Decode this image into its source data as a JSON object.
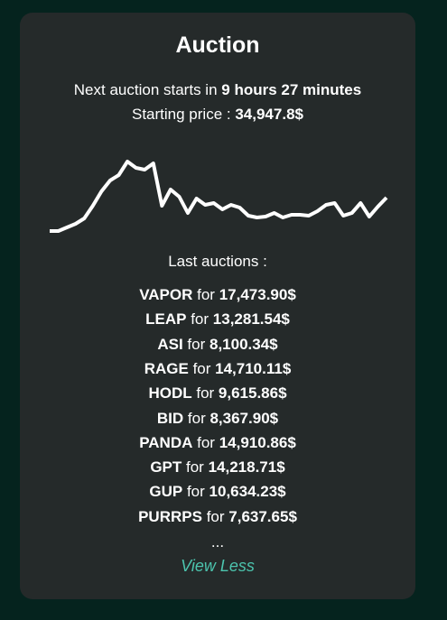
{
  "card": {
    "title": "Auction",
    "next": {
      "text": "Next auction starts in",
      "time": "9 hours 27 minutes"
    },
    "price": {
      "text": "Starting price :",
      "value": "34,947.8$"
    },
    "sparkline": {
      "type": "line",
      "color": "#ffffff",
      "values": [
        0,
        0,
        4,
        8,
        14,
        28,
        44,
        56,
        62,
        77,
        70,
        68,
        75,
        28,
        46,
        38,
        20,
        36,
        29,
        31,
        24,
        29,
        26,
        17,
        15,
        16,
        20,
        15,
        18,
        18,
        17,
        22,
        29,
        31,
        17,
        20,
        31,
        16,
        27,
        37
      ]
    },
    "list_title": "Last auctions :",
    "connector": "for",
    "items": [
      {
        "name": "VAPOR",
        "amount": "17,473.90$"
      },
      {
        "name": "LEAP",
        "amount": "13,281.54$"
      },
      {
        "name": "ASI",
        "amount": "8,100.34$"
      },
      {
        "name": "RAGE",
        "amount": "14,710.11$"
      },
      {
        "name": "HODL",
        "amount": "9,615.86$"
      },
      {
        "name": "BID",
        "amount": "8,367.90$"
      },
      {
        "name": "PANDA",
        "amount": "14,910.86$"
      },
      {
        "name": "GPT",
        "amount": "14,218.71$"
      },
      {
        "name": "GUP",
        "amount": "10,634.23$"
      },
      {
        "name": "PURRPS",
        "amount": "7,637.65$"
      }
    ],
    "ellipsis": "...",
    "toggle": "View Less"
  }
}
